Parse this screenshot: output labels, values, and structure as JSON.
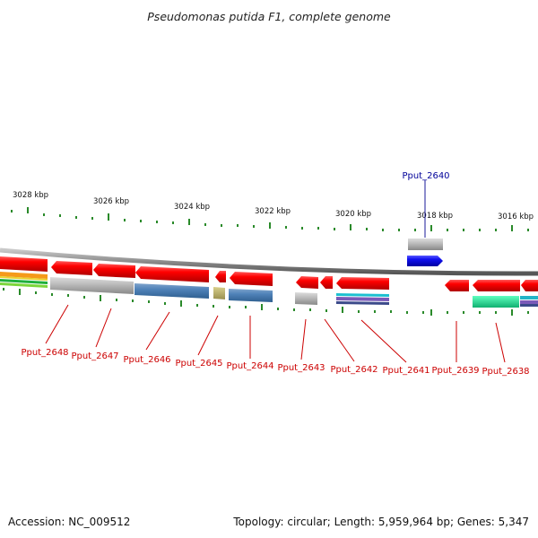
{
  "title": "Pseudomonas putida F1, complete genome",
  "footer": {
    "accession": "Accession: NC_009512",
    "summary": "Topology: circular; Length: 5,959,964 bp; Genes: 5,347"
  },
  "colors": {
    "backbone": "#8a8a8a",
    "tick": "#2a8a2a",
    "forward_gene": "#1010e0",
    "reverse_gene": "#f00000",
    "label_reverse": "#cc0000",
    "label_forward": "#000099"
  },
  "scale_ticks": [
    "3028 kbp",
    "3026 kbp",
    "3024 kbp",
    "3022 kbp",
    "3020 kbp",
    "3018 kbp",
    "3016 kbp"
  ],
  "gene_labels": [
    {
      "name": "Pput_2640",
      "strand": "forward"
    },
    {
      "name": "Pput_2648",
      "strand": "reverse"
    },
    {
      "name": "Pput_2647",
      "strand": "reverse"
    },
    {
      "name": "Pput_2646",
      "strand": "reverse"
    },
    {
      "name": "Pput_2645",
      "strand": "reverse"
    },
    {
      "name": "Pput_2644",
      "strand": "reverse"
    },
    {
      "name": "Pput_2643",
      "strand": "reverse"
    },
    {
      "name": "Pput_2642",
      "strand": "reverse"
    },
    {
      "name": "Pput_2641",
      "strand": "reverse"
    },
    {
      "name": "Pput_2639",
      "strand": "reverse"
    },
    {
      "name": "Pput_2638",
      "strand": "reverse"
    }
  ]
}
